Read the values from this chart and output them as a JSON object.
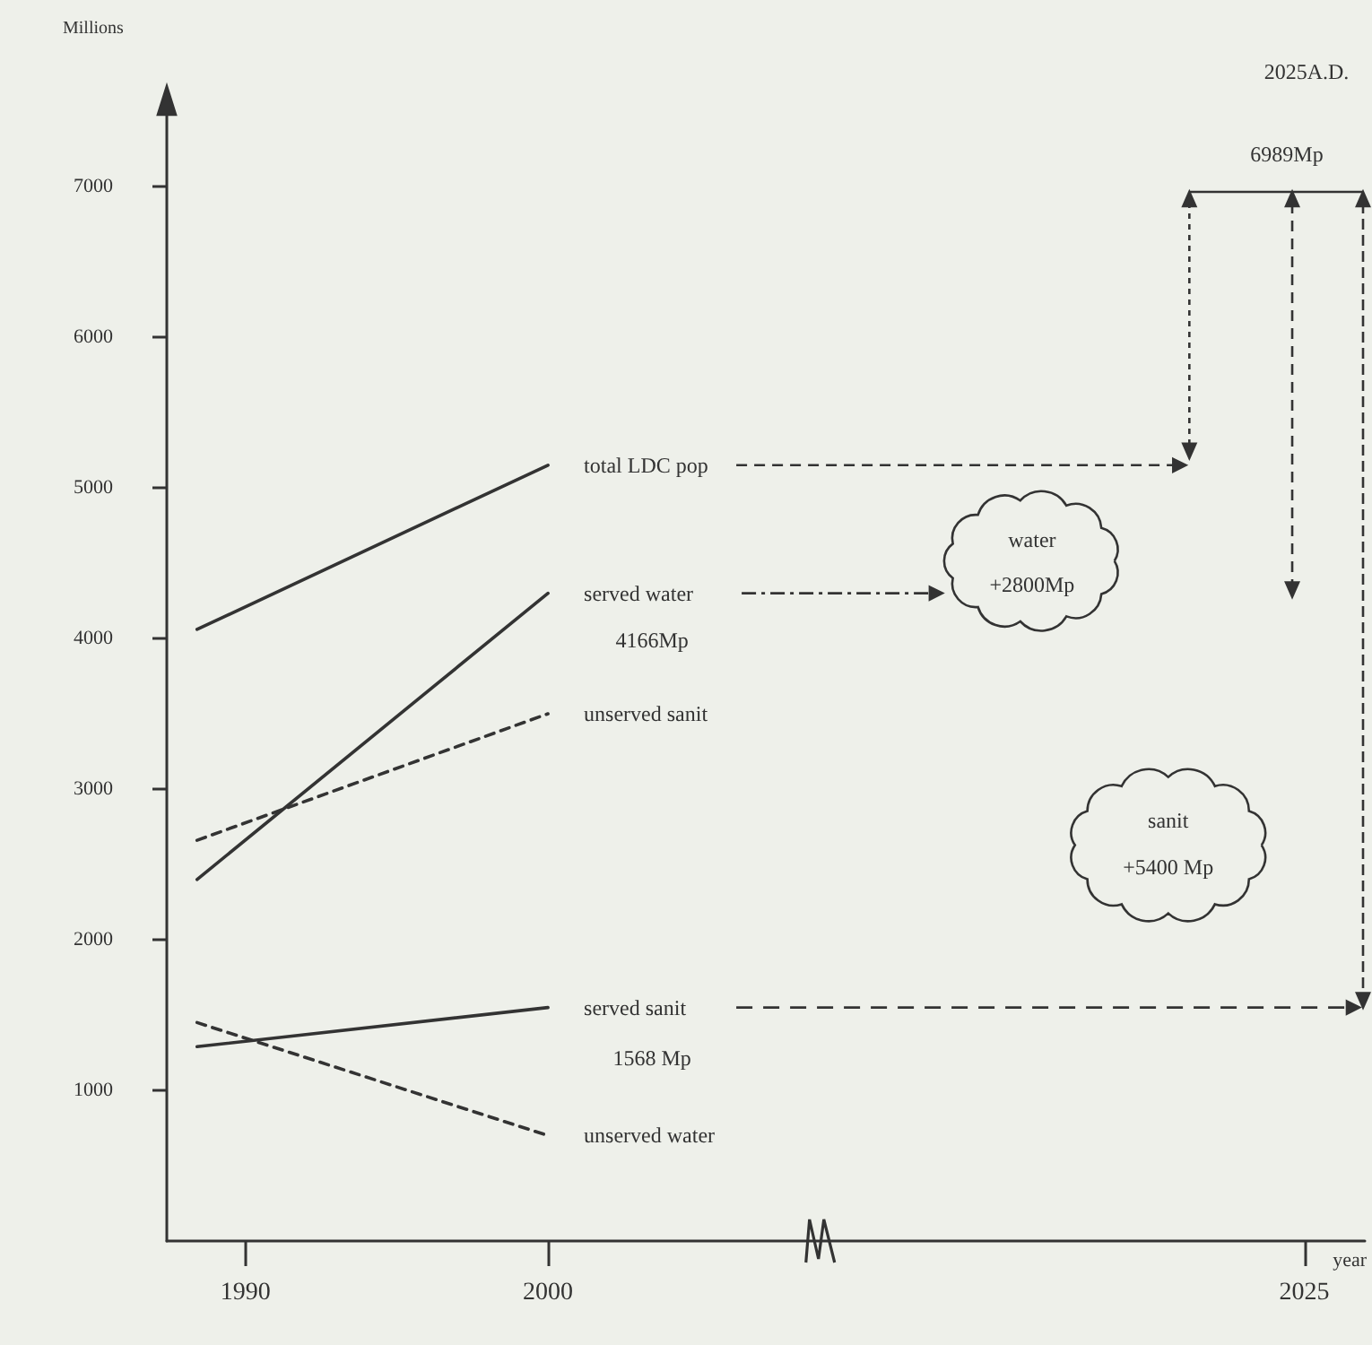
{
  "chart_data": {
    "type": "line",
    "xlabel": "year",
    "ylabel": "Millions",
    "x": [
      1988.4,
      2000
    ],
    "series": [
      {
        "name": "total LDC pop",
        "color": "#333333",
        "line_style": "solid",
        "values": [
          4060,
          5150
        ]
      },
      {
        "name": "served water",
        "color": "#333333",
        "line_style": "solid",
        "values": [
          2400,
          4300
        ]
      },
      {
        "name": "unserved sanit",
        "color": "#333333",
        "line_style": "dashed",
        "values": [
          2660,
          3500
        ]
      },
      {
        "name": "served sanit",
        "color": "#333333",
        "line_style": "solid",
        "values": [
          1290,
          1550
        ]
      },
      {
        "name": "unserved water",
        "color": "#333333",
        "line_style": "dashed",
        "values": [
          1450,
          700
        ]
      }
    ],
    "xlim": [
      1987.4,
      2027
    ],
    "xticks": [
      1990,
      2000,
      2025
    ],
    "ylim": [
      0,
      7500
    ],
    "yticks": [
      1000,
      2000,
      3000,
      4000,
      5000,
      6000,
      7000
    ],
    "grid": false,
    "legend": false,
    "marker": "none",
    "annotations": [
      "2025A.D.",
      "6989Mp",
      "4166Mp",
      "1568 Mp",
      "water",
      "+2800Mp",
      "sanit",
      "+5400 Mp"
    ]
  }
}
